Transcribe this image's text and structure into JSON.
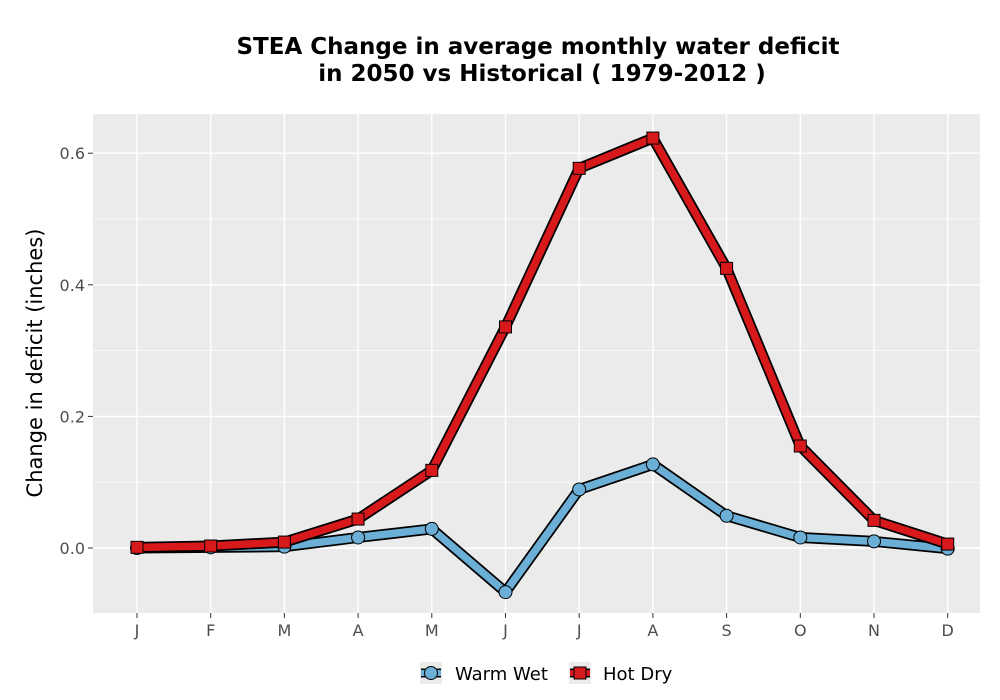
{
  "chart_data": {
    "type": "line",
    "title_line1": "STEA  Change in average monthly water deficit",
    "title_line2": "in 2050 vs Historical ( 1979-2012 )",
    "xlabel": "",
    "ylabel": "Change in deficit (inches)",
    "categories": [
      "J",
      "F",
      "M",
      "A",
      "M",
      "J",
      "J",
      "A",
      "S",
      "O",
      "N",
      "D"
    ],
    "ylim": [
      -0.1,
      0.66
    ],
    "yticks": [
      0.0,
      0.2,
      0.4,
      0.6
    ],
    "ytick_labels": [
      "0.0",
      "0.2",
      "0.4",
      "0.6"
    ],
    "grid": true,
    "legend_position": "bottom",
    "series": [
      {
        "name": "Warm Wet",
        "marker": "circle",
        "color": "#6baed6",
        "values": [
          0.0,
          0.001,
          0.002,
          0.016,
          0.029,
          -0.067,
          0.089,
          0.127,
          0.049,
          0.016,
          0.01,
          -0.001
        ]
      },
      {
        "name": "Hot Dry",
        "marker": "square",
        "color": "#d7191c",
        "values": [
          0.001,
          0.003,
          0.009,
          0.044,
          0.118,
          0.336,
          0.577,
          0.623,
          0.425,
          0.155,
          0.042,
          0.006
        ]
      }
    ]
  },
  "colors": {
    "panel_background": "#ebebeb",
    "grid": "#ffffff",
    "outline": "#000000"
  }
}
